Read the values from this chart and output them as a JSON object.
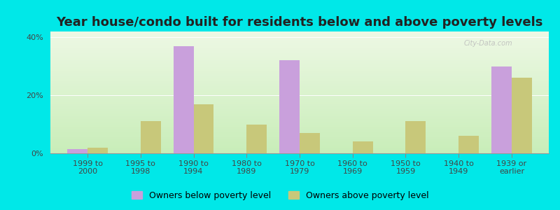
{
  "title": "Year house/condo built for residents below and above poverty levels",
  "categories": [
    "1999 to\n2000",
    "1995 to\n1998",
    "1990 to\n1994",
    "1980 to\n1989",
    "1970 to\n1979",
    "1960 to\n1969",
    "1950 to\n1959",
    "1940 to\n1949",
    "1939 or\nearlier"
  ],
  "below_poverty": [
    1.5,
    0,
    37,
    0,
    32,
    0,
    0,
    0,
    30
  ],
  "above_poverty": [
    2,
    11,
    17,
    10,
    7,
    4,
    11,
    6,
    26
  ],
  "below_color": "#c9a0dc",
  "above_color": "#c8c87a",
  "ylim": [
    0,
    42
  ],
  "yticks": [
    0,
    20,
    40
  ],
  "ytick_labels": [
    "0%",
    "20%",
    "40%"
  ],
  "background_outer": "#00e8e8",
  "background_inner_top": "#edf8e4",
  "background_inner_bottom": "#c8edb8",
  "bar_width": 0.38,
  "title_fontsize": 13,
  "tick_fontsize": 8,
  "legend_fontsize": 9,
  "legend_below_label": "Owners below poverty level",
  "legend_above_label": "Owners above poverty level",
  "watermark": "City-Data.com"
}
